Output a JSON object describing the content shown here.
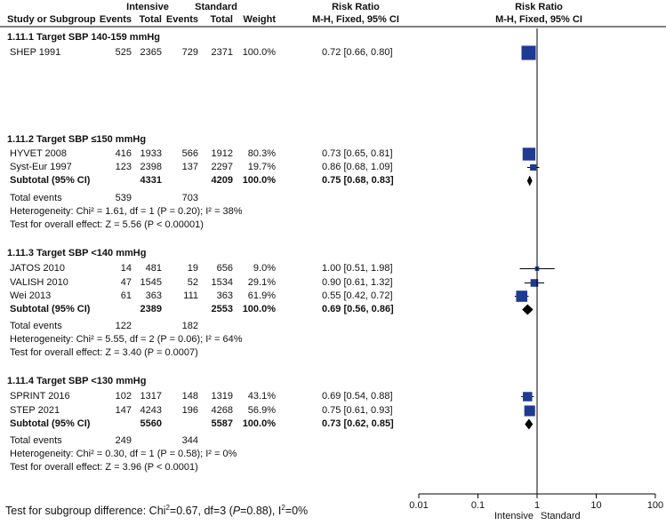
{
  "header": {
    "col_study": "Study or Subgroup",
    "group1": "Intensive",
    "group2": "Standard",
    "events": "Events",
    "total": "Total",
    "weight": "Weight",
    "rr_title": "Risk Ratio",
    "rr_method": "M-H, Fixed, 95% CI",
    "plot_title": "Risk Ratio",
    "plot_method": "M-H, Fixed, 95% CI"
  },
  "chart_data": {
    "type": "forest",
    "x_scale": "log",
    "xlim": [
      0.01,
      100
    ],
    "ticks": [
      {
        "value": 0.01,
        "label": "0.01"
      },
      {
        "value": 0.1,
        "label": "0.1"
      },
      {
        "value": 1,
        "label": "1"
      },
      {
        "value": 10,
        "label": "10"
      },
      {
        "value": 100,
        "label": "100"
      }
    ],
    "favours_left": "Intensive",
    "favours_right": "Standard",
    "subgroups": [
      {
        "title": "1.11.1 Target SBP 140-159 mmHg",
        "studies": [
          {
            "name": "SHEP 1991",
            "e1": "525",
            "n1": "2365",
            "e2": "729",
            "n2": "2371",
            "weight": "100.0%",
            "ci_text": "0.72 [0.66, 0.80]",
            "rr": 0.72,
            "lo": 0.66,
            "hi": 0.8,
            "w": 100.0
          }
        ]
      },
      {
        "title": "1.11.2 Target SBP ≤150 mmHg",
        "studies": [
          {
            "name": "HYVET 2008",
            "e1": "416",
            "n1": "1933",
            "e2": "566",
            "n2": "1912",
            "weight": "80.3%",
            "ci_text": "0.73 [0.65, 0.81]",
            "rr": 0.73,
            "lo": 0.65,
            "hi": 0.81,
            "w": 80.3
          },
          {
            "name": "Syst-Eur 1997",
            "e1": "123",
            "n1": "2398",
            "e2": "137",
            "n2": "2297",
            "weight": "19.7%",
            "ci_text": "0.86 [0.68, 1.09]",
            "rr": 0.86,
            "lo": 0.68,
            "hi": 1.09,
            "w": 19.7
          }
        ],
        "subtotal": {
          "label": "Subtotal (95% CI)",
          "n1": "4331",
          "n2": "4209",
          "weight": "100.0%",
          "ci_text": "0.75 [0.68, 0.83]",
          "rr": 0.75,
          "lo": 0.68,
          "hi": 0.83
        },
        "total_events": {
          "label": "Total events",
          "e1": "539",
          "e2": "703"
        },
        "heterogeneity": "Heterogeneity: Chi² = 1.61, df = 1 (P = 0.20); I² = 38%",
        "overall": "Test for overall effect: Z = 5.56 (P < 0.00001)"
      },
      {
        "title": "1.11.3 Target SBP <140 mmHg",
        "studies": [
          {
            "name": "JATOS 2010",
            "e1": "14",
            "n1": "481",
            "e2": "19",
            "n2": "656",
            "weight": "9.0%",
            "ci_text": "1.00 [0.51, 1.98]",
            "rr": 1.0,
            "lo": 0.51,
            "hi": 1.98,
            "w": 9.0
          },
          {
            "name": "VALISH 2010",
            "e1": "47",
            "n1": "1545",
            "e2": "52",
            "n2": "1534",
            "weight": "29.1%",
            "ci_text": "0.90 [0.61, 1.32]",
            "rr": 0.9,
            "lo": 0.61,
            "hi": 1.32,
            "w": 29.1
          },
          {
            "name": "Wei 2013",
            "e1": "61",
            "n1": "363",
            "e2": "111",
            "n2": "363",
            "weight": "61.9%",
            "ci_text": "0.55 [0.42, 0.72]",
            "rr": 0.55,
            "lo": 0.42,
            "hi": 0.72,
            "w": 61.9
          }
        ],
        "subtotal": {
          "label": "Subtotal (95% CI)",
          "n1": "2389",
          "n2": "2553",
          "weight": "100.0%",
          "ci_text": "0.69 [0.56, 0.86]",
          "rr": 0.69,
          "lo": 0.56,
          "hi": 0.86
        },
        "total_events": {
          "label": "Total events",
          "e1": "122",
          "e2": "182"
        },
        "heterogeneity": "Heterogeneity: Chi² = 5.55, df = 2 (P = 0.06); I² = 64%",
        "overall": "Test for overall effect: Z = 3.40 (P = 0.0007)"
      },
      {
        "title": "1.11.4 Target SBP <130 mmHg",
        "studies": [
          {
            "name": "SPRINT 2016",
            "e1": "102",
            "n1": "1317",
            "e2": "148",
            "n2": "1319",
            "weight": "43.1%",
            "ci_text": "0.69 [0.54, 0.88]",
            "rr": 0.69,
            "lo": 0.54,
            "hi": 0.88,
            "w": 43.1
          },
          {
            "name": "STEP 2021",
            "e1": "147",
            "n1": "4243",
            "e2": "196",
            "n2": "4268",
            "weight": "56.9%",
            "ci_text": "0.75 [0.61, 0.93]",
            "rr": 0.75,
            "lo": 0.61,
            "hi": 0.93,
            "w": 56.9
          }
        ],
        "subtotal": {
          "label": "Subtotal (95% CI)",
          "n1": "5560",
          "n2": "5587",
          "weight": "100.0%",
          "ci_text": "0.73 [0.62, 0.85]",
          "rr": 0.73,
          "lo": 0.62,
          "hi": 0.85
        },
        "total_events": {
          "label": "Total events",
          "e1": "249",
          "e2": "344"
        },
        "heterogeneity": "Heterogeneity: Chi² = 0.30, df = 1 (P = 0.58); I² = 0%",
        "overall": "Test for overall effect: Z = 3.96 (P < 0.0001)"
      }
    ],
    "colors": {
      "square": "#1f3a93",
      "diamond": "#000000",
      "line": "#000000"
    }
  },
  "footer": {
    "prefix": "Test for subgroup difference: Chi",
    "sup1": "2",
    "mid1": "=0.67, df=3 (",
    "p_italic": "P",
    "mid2": "=0.88), I",
    "sup2": "2",
    "suffix": "=0%"
  }
}
